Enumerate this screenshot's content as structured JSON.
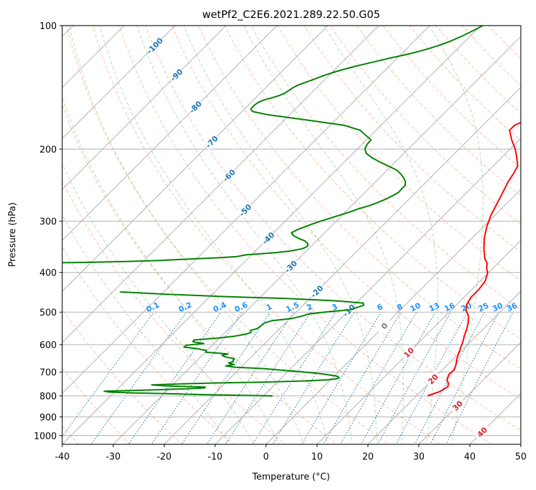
{
  "chart_data": {
    "type": "line",
    "title": "wetPf2_C2E6.2021.289.22.50.G05",
    "xlabel": "Temperature (°C)",
    "ylabel": "Pressure (hPa)",
    "xlim": [
      -40,
      50
    ],
    "ylim": [
      1050,
      100
    ],
    "y_scale": "log",
    "grid": true,
    "x_ticks": [
      "-40",
      "-30",
      "-20",
      "-10",
      "0",
      "10",
      "20",
      "30",
      "40",
      "50"
    ],
    "y_ticks": [
      "100",
      "200",
      "300",
      "400",
      "500",
      "600",
      "700",
      "800",
      "900",
      "1000"
    ],
    "colors": {
      "temperature": "#ff0000",
      "dewpoint": "#008000",
      "dry_adiabat": "#ff7f50",
      "moist_adiabat": "#2ca02c",
      "mixing_ratio": "#1f77b4",
      "isotherm": "#777777"
    },
    "series": [
      {
        "color": "#ff0000",
        "pressure": [
          800,
          780,
          760,
          745,
          730,
          710,
          690,
          670,
          650,
          620,
          590,
          570,
          550,
          530,
          510,
          495,
          480,
          460,
          440,
          420,
          400,
          390,
          380,
          370,
          350,
          330,
          310,
          290,
          270,
          250,
          240,
          230,
          220,
          210,
          200,
          190,
          180,
          175,
          170,
          165,
          160,
          155,
          150,
          145,
          140,
          130,
          125,
          120,
          115,
          110,
          105,
          100
        ],
        "x": [
          22.2,
          23.8,
          24.4,
          23.8,
          22.8,
          22.2,
          22.3,
          21.6,
          20.7,
          19.6,
          18.5,
          17.6,
          16.8,
          15.8,
          14.5,
          13.0,
          12.0,
          11.4,
          11.4,
          11.0,
          9.8,
          8.7,
          7.9,
          6.5,
          4.4,
          2.4,
          0.7,
          -0.8,
          -2.0,
          -3.3,
          -4.0,
          -4.5,
          -5.2,
          -7.0,
          -9.0,
          -11.5,
          -13.8,
          -13.8,
          -12.5,
          -11.0,
          -10.2,
          -10.2,
          -10.8,
          -11.3,
          -12.2,
          -13.2,
          -14.4,
          -16.0,
          -17.4,
          -18.2,
          -18.6,
          -18.8
        ]
      },
      {
        "color": "#008000",
        "pressure": [
          800,
          797,
          794,
          790,
          787,
          783,
          779,
          776,
          772,
          768,
          765,
          761,
          756,
          752,
          748,
          744,
          740,
          735,
          731,
          726,
          721,
          716,
          712,
          707,
          702,
          697,
          692,
          686,
          681,
          676,
          671,
          665,
          660,
          654,
          649,
          643,
          637,
          632,
          626,
          620,
          614,
          608,
          602,
          596,
          590,
          584,
          578,
          572,
          566,
          560,
          554,
          548,
          542,
          536,
          530,
          524,
          518,
          511,
          505,
          499,
          493,
          487,
          481,
          475,
          469,
          463,
          458,
          452,
          446
        ],
        "x": [
          -8.2,
          -15.5,
          -22.5,
          -29.5,
          -36.0,
          -41.0,
          -42.2,
          -37.0,
          -30.8,
          -25.5,
          -23.1,
          -23.2,
          -31.3,
          -34.1,
          -29.0,
          -21.8,
          -12.0,
          -4.2,
          -0.5,
          1.1,
          1.2,
          0.5,
          -0.9,
          -2.8,
          -5.4,
          -8.3,
          -11.6,
          -15.6,
          -21.2,
          -23.3,
          -21.9,
          -23.3,
          -22.6,
          -23.0,
          -23.0,
          -25.1,
          -26.1,
          -25.2,
          -29.9,
          -30.1,
          -32.3,
          -35.2,
          -35.1,
          -32.0,
          -34.5,
          -34.6,
          -30.1,
          -27.4,
          -25.6,
          -24.9,
          -25.4,
          -24.4,
          -24.3,
          -24.2,
          -24.0,
          -23.0,
          -19.6,
          -18.1,
          -17.2,
          -14.1,
          -9.8,
          -9.0,
          -8.1,
          -8.6,
          -14.5,
          -24.7,
          -37.3,
          -49.1,
          -58.6
        ]
      },
      {
        "color": "#008000",
        "pressure": [
          380,
          378,
          376,
          374,
          372,
          370,
          368,
          366,
          364,
          362,
          360,
          358,
          355,
          350,
          345,
          340,
          335,
          330,
          325,
          320,
          315,
          310,
          305,
          300,
          295,
          290,
          285,
          280,
          275,
          270,
          265,
          260,
          255,
          250,
          245,
          240,
          235,
          230,
          225,
          220,
          215,
          210,
          205,
          200,
          195,
          190,
          185,
          180,
          175,
          170,
          165,
          162,
          160,
          158,
          156,
          154,
          152,
          150,
          148,
          146,
          144,
          142,
          140,
          138,
          136,
          134,
          132,
          130,
          128,
          126,
          124,
          122,
          120,
          118,
          116,
          114,
          112,
          110,
          108,
          106,
          104,
          102,
          100
        ],
        "x": [
          -85.0,
          -71.0,
          -63.0,
          -57.0,
          -53.5,
          -49.5,
          -45.4,
          -42.6,
          -41.8,
          -40.9,
          -38.3,
          -35.9,
          -33.4,
          -31.2,
          -30.7,
          -31.2,
          -32.3,
          -34.1,
          -35.6,
          -36.5,
          -36.0,
          -35.1,
          -34.2,
          -33.1,
          -31.8,
          -30.5,
          -29.2,
          -28.1,
          -26.6,
          -25.5,
          -24.6,
          -23.9,
          -23.4,
          -23.5,
          -23.5,
          -24.2,
          -25.3,
          -26.6,
          -28.2,
          -30.6,
          -33.1,
          -35.4,
          -37.4,
          -38.5,
          -39.0,
          -39.1,
          -41.1,
          -43.1,
          -47.3,
          -55.5,
          -64.3,
          -67.9,
          -68.7,
          -68.8,
          -68.8,
          -68.6,
          -68.0,
          -66.8,
          -65.8,
          -65.2,
          -64.9,
          -64.7,
          -64.3,
          -63.5,
          -62.5,
          -61.7,
          -60.8,
          -59.7,
          -58.4,
          -56.9,
          -55.1,
          -53.3,
          -51.4,
          -49.3,
          -47.4,
          -45.8,
          -44.5,
          -43.3,
          -42.4,
          -41.6,
          -40.9,
          -40.2,
          -39.6
        ]
      }
    ],
    "isotherms_deg_c": [
      -100,
      -90,
      -80,
      -70,
      -60,
      -50,
      -40,
      -30,
      -20,
      -10,
      0,
      10,
      20,
      30,
      40
    ],
    "isotherm_labels": [
      {
        "text": "-100",
        "t": -100,
        "p": 112
      },
      {
        "text": "-90",
        "t": -90,
        "p": 132
      },
      {
        "text": "-80",
        "t": -80,
        "p": 158
      },
      {
        "text": "-70",
        "t": -70,
        "p": 192
      },
      {
        "text": "-60",
        "t": -60,
        "p": 232
      },
      {
        "text": "-50",
        "t": -50,
        "p": 282
      },
      {
        "text": "-40",
        "t": -40,
        "p": 330
      },
      {
        "text": "-30",
        "t": -30,
        "p": 387
      },
      {
        "text": "-20",
        "t": -20,
        "p": 445
      },
      {
        "text": "-10",
        "t": -10,
        "p": 495
      },
      {
        "text": "0",
        "t": 0,
        "p": 540
      },
      {
        "text": "10",
        "t": 10,
        "p": 627
      },
      {
        "text": "20",
        "t": 20,
        "p": 728
      },
      {
        "text": "30",
        "t": 30,
        "p": 845
      },
      {
        "text": "40",
        "t": 40,
        "p": 980
      }
    ],
    "mixing_ratios_g_per_kg": [
      "0.1",
      "0.2",
      "0.4",
      "0.6",
      "1",
      "1.5",
      "2",
      "3",
      "4",
      "6",
      "8",
      "10",
      "13",
      "16",
      "20",
      "25",
      "30",
      "36"
    ],
    "dry_adiabats_deg_c": [
      -40,
      -30,
      -20,
      -10,
      0,
      10,
      20,
      30,
      40,
      50,
      60,
      70,
      80,
      90,
      100,
      110,
      120,
      130,
      140,
      150,
      160,
      170,
      180
    ],
    "moist_adiabats_deg_c": [
      -10,
      -5,
      0,
      5,
      10,
      15,
      20,
      25,
      30,
      35
    ]
  }
}
